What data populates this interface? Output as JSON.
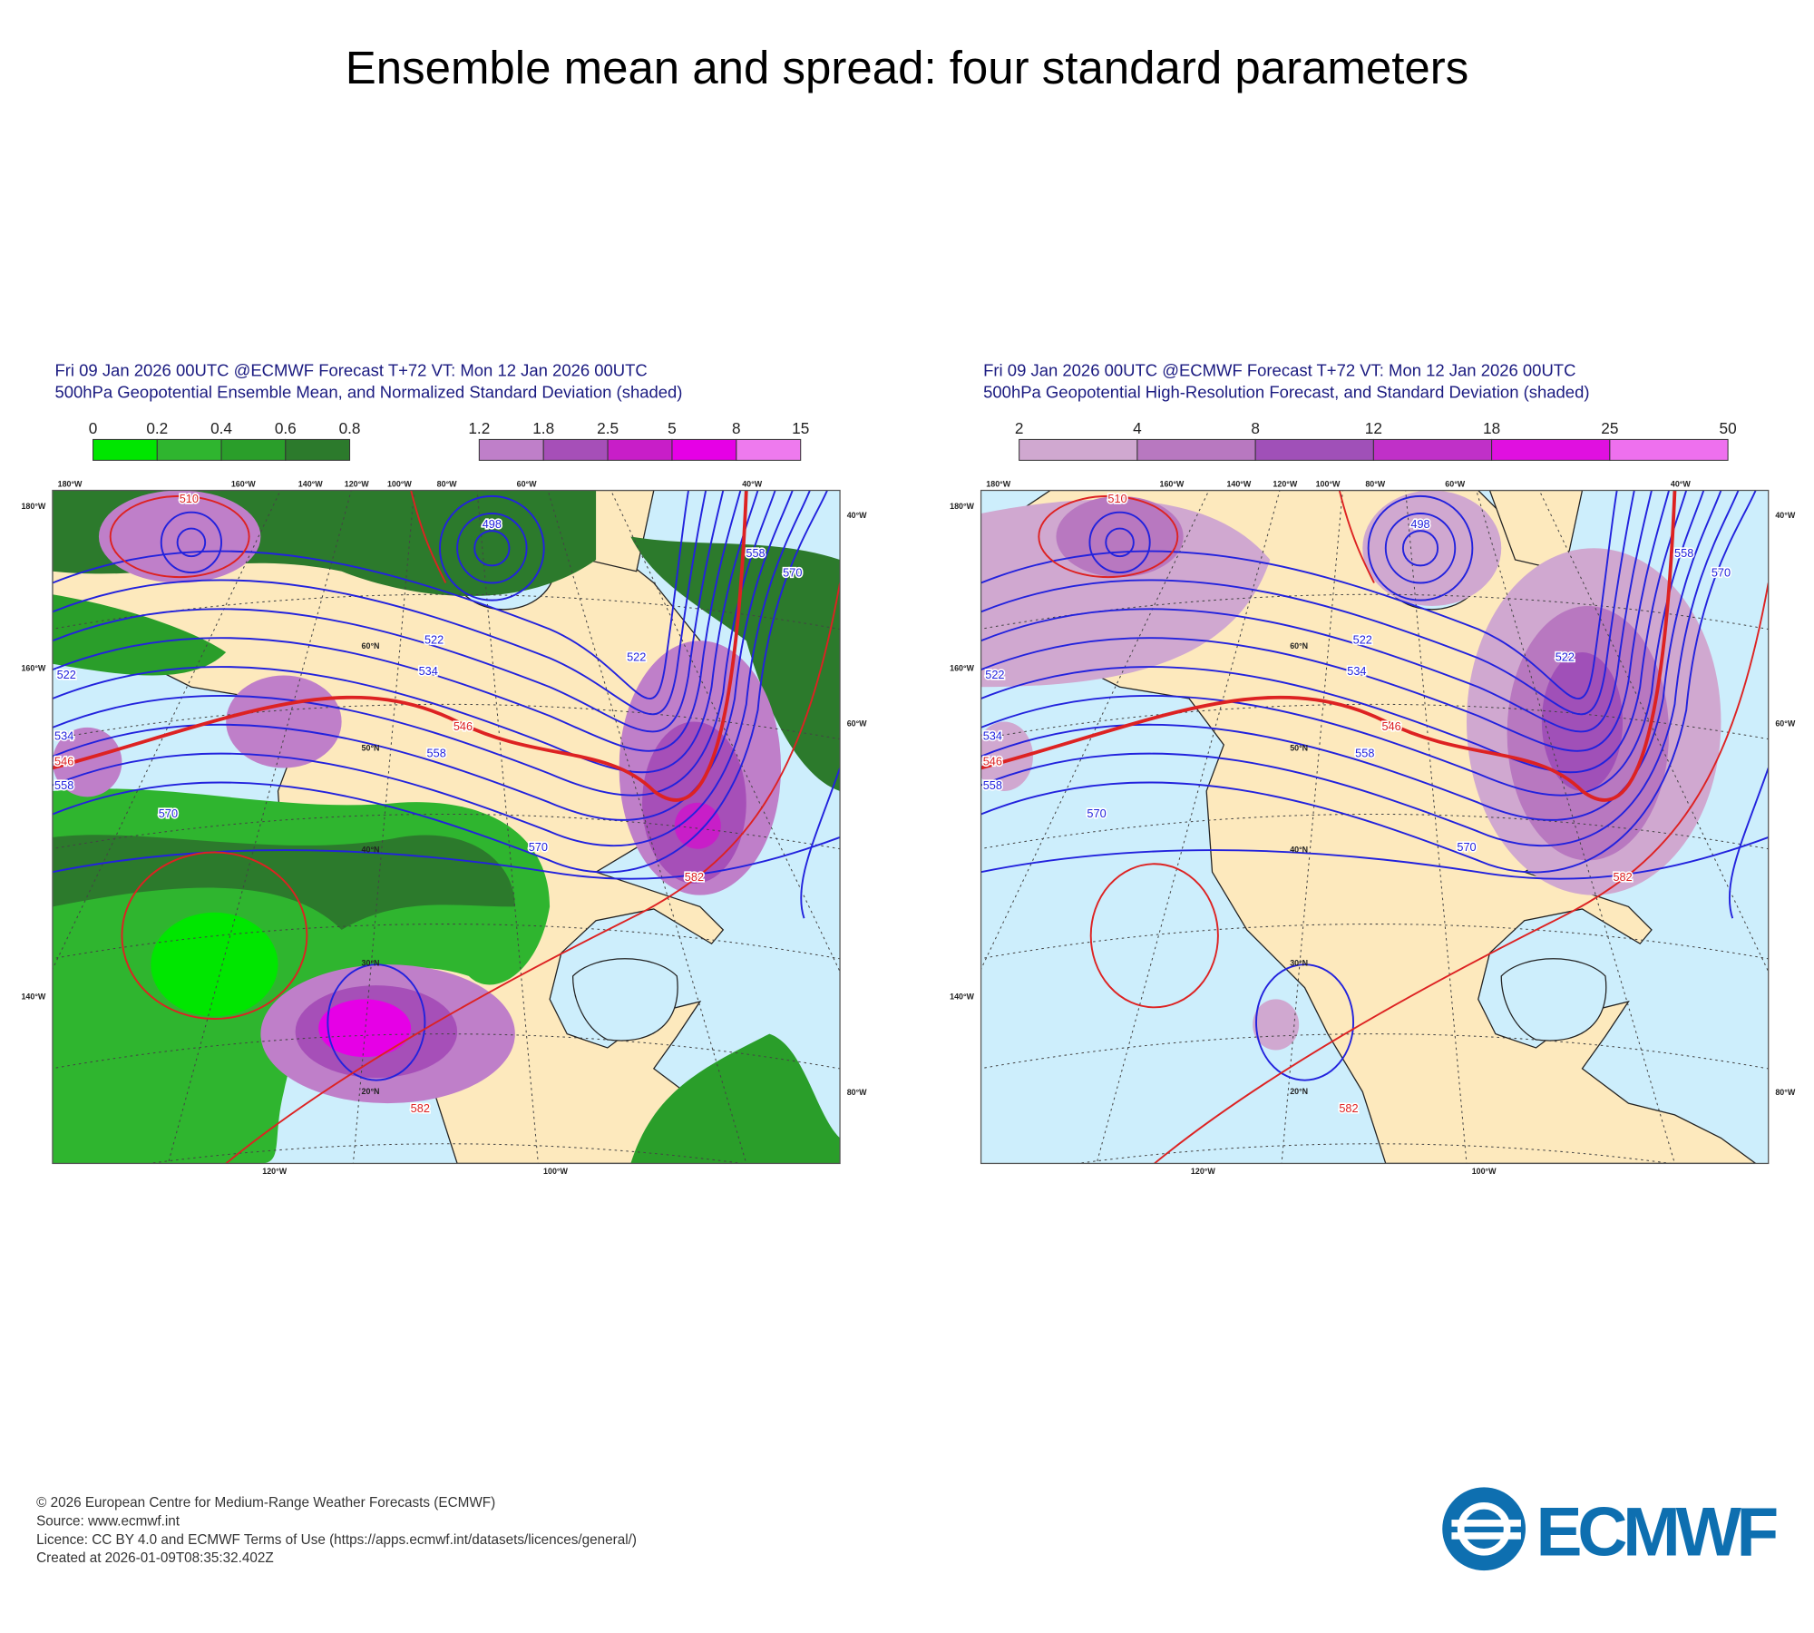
{
  "title": "Ensemble mean and spread: four standard parameters",
  "panels": [
    {
      "title_lines": [
        "Fri 09 Jan 2026 00UTC @ECMWF Forecast T+72 VT: Mon 12 Jan 2026 00UTC",
        "500hPa Geopotential Ensemble Mean, and Normalized Standard Deviation (shaded)"
      ],
      "colorbars": [
        {
          "ticks": [
            "0",
            "0.2",
            "0.4",
            "0.6",
            "0.8"
          ],
          "colors": [
            "#00e600",
            "#2fb52f",
            "#2a9e2a",
            "#2c7a2c"
          ]
        },
        {
          "ticks": [
            "1.2",
            "1.8",
            "2.5",
            "5",
            "8",
            "15"
          ],
          "colors": [
            "#bf7fc9",
            "#a64fb8",
            "#c81ec8",
            "#e600e6",
            "#ee7aee"
          ]
        }
      ],
      "grid_labels": {
        "top": [
          "180°W",
          "160°W",
          "140°W",
          "120°W",
          "100°W",
          "80°W",
          "60°W",
          "40°W"
        ],
        "left": [
          "180°W",
          "160°W",
          "140°W"
        ],
        "right": [
          "40°W",
          "60°W",
          "80°W"
        ],
        "bottom": [
          "120°W",
          "100°W"
        ],
        "lat": [
          "60°N",
          "50°N",
          "40°N",
          "30°N",
          "20°N"
        ]
      },
      "contour_labels": [
        {
          "text": "522",
          "color": "#2222dd"
        },
        {
          "text": "534",
          "color": "#2222dd"
        },
        {
          "text": "546",
          "color": "#dd2222"
        },
        {
          "text": "558",
          "color": "#2222dd"
        },
        {
          "text": "570",
          "color": "#2222dd"
        },
        {
          "text": "522",
          "color": "#2222dd"
        },
        {
          "text": "534",
          "color": "#2222dd"
        },
        {
          "text": "546",
          "color": "#dd2222"
        },
        {
          "text": "558",
          "color": "#2222dd"
        },
        {
          "text": "570",
          "color": "#2222dd"
        },
        {
          "text": "582",
          "color": "#dd2222"
        },
        {
          "text": "582",
          "color": "#dd2222"
        },
        {
          "text": "498",
          "color": "#2222dd"
        },
        {
          "text": "522",
          "color": "#2222dd"
        },
        {
          "text": "510",
          "color": "#dd2222"
        },
        {
          "text": "558",
          "color": "#2222dd"
        },
        {
          "text": "570",
          "color": "#2222dd"
        }
      ]
    },
    {
      "title_lines": [
        "Fri 09 Jan 2026 00UTC @ECMWF Forecast T+72 VT: Mon 12 Jan 2026 00UTC",
        "500hPa Geopotential High-Resolution Forecast, and Standard Deviation (shaded)"
      ],
      "colorbars": [
        {
          "ticks": [
            "2",
            "4",
            "8",
            "12",
            "18",
            "25",
            "50"
          ],
          "colors": [
            "#d0a8d0",
            "#b878c0",
            "#a050b8",
            "#c030c8",
            "#e010e0",
            "#ee70ee"
          ]
        }
      ],
      "grid_labels": {
        "top": [
          "180°W",
          "160°W",
          "140°W",
          "120°W",
          "100°W",
          "80°W",
          "60°W",
          "40°W"
        ],
        "left": [
          "180°W",
          "160°W",
          "140°W"
        ],
        "right": [
          "40°W",
          "60°W",
          "80°W"
        ],
        "bottom": [
          "120°W",
          "100°W"
        ],
        "lat": [
          "60°N",
          "50°N",
          "40°N",
          "30°N",
          "20°N"
        ]
      },
      "contour_labels": [
        {
          "text": "522",
          "color": "#2222dd"
        },
        {
          "text": "534",
          "color": "#2222dd"
        },
        {
          "text": "546",
          "color": "#dd2222"
        },
        {
          "text": "558",
          "color": "#2222dd"
        },
        {
          "text": "570",
          "color": "#2222dd"
        },
        {
          "text": "522",
          "color": "#2222dd"
        },
        {
          "text": "534",
          "color": "#2222dd"
        },
        {
          "text": "546",
          "color": "#dd2222"
        },
        {
          "text": "558",
          "color": "#2222dd"
        },
        {
          "text": "570",
          "color": "#2222dd"
        },
        {
          "text": "582",
          "color": "#dd2222"
        },
        {
          "text": "582",
          "color": "#dd2222"
        },
        {
          "text": "498",
          "color": "#2222dd"
        },
        {
          "text": "522",
          "color": "#2222dd"
        },
        {
          "text": "510",
          "color": "#dd2222"
        },
        {
          "text": "558",
          "color": "#2222dd"
        },
        {
          "text": "570",
          "color": "#2222dd"
        }
      ]
    }
  ],
  "footer": [
    "© 2026 European Centre for Medium-Range Weather Forecasts (ECMWF)",
    "Source: www.ecmwf.int",
    "Licence: CC BY 4.0 and ECMWF Terms of Use (https://apps.ecmwf.int/datasets/licences/general/)",
    "Created at 2026-01-09T08:35:32.402Z"
  ],
  "logo": "ECMWF"
}
